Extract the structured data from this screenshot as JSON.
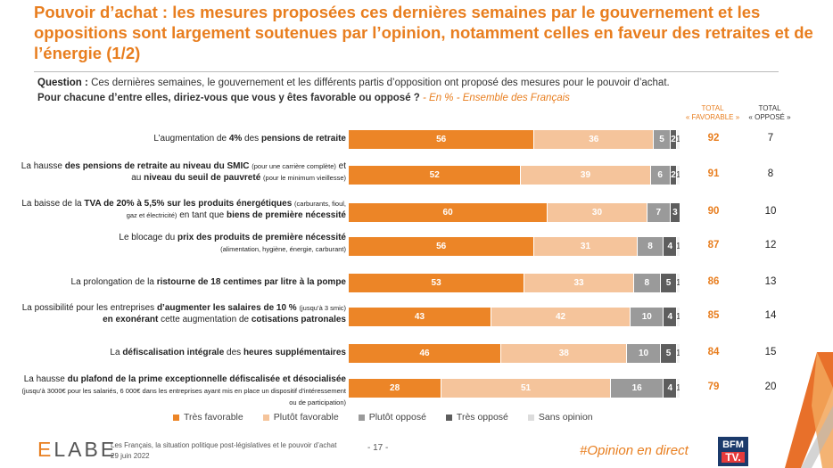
{
  "title": "Pouvoir d’achat : les mesures proposées ces dernières semaines par le gouvernement et les oppositions sont largement soutenues par l’opinion, notamment celles en faveur des retraites et de l’énergie (1/2)",
  "question": {
    "label": "Question :",
    "line1": "Ces dernières semaines, le gouvernement et les différents partis d’opposition ont proposé des mesures pour le pouvoir d’achat.",
    "line2": "Pour chacune d’entre elles, diriez-vous que vous y êtes favorable ou opposé ?",
    "note": " - En % - Ensemble des Français"
  },
  "columns": {
    "favorable_line1": "TOTAL",
    "favorable_line2": "« FAVORABLE »",
    "oppose_line1": "TOTAL",
    "oppose_line2": "« OPPOSÉ »"
  },
  "chart_data": {
    "type": "bar",
    "orientation": "horizontal",
    "stacked": true,
    "series": [
      {
        "name": "Très favorable",
        "color": "#ec8527"
      },
      {
        "name": "Plutôt favorable",
        "color": "#f5c49b"
      },
      {
        "name": "Plutôt opposé",
        "color": "#9a9a9a"
      },
      {
        "name": "Très opposé",
        "color": "#5d5d5d"
      },
      {
        "name": "Sans opinion",
        "color": "#f3f3f3"
      }
    ],
    "rows": [
      {
        "label_html": "L’augmentation de <b>4%</b> des <b>pensions de retraite</b>",
        "values": [
          56,
          36,
          5,
          2,
          1
        ],
        "total_favorable": "92",
        "total_oppose": "7"
      },
      {
        "label_html": "La hausse <b>des pensions de retraite au niveau du SMIC</b> <span class=\"sm\">(pour une carrière complète)</span> et au <b>niveau du seuil de pauvreté</b> <span class=\"sm\">(pour le minimum vieillesse)</span>",
        "values": [
          52,
          39,
          6,
          2,
          1
        ],
        "total_favorable": "91",
        "total_oppose": "8"
      },
      {
        "label_html": "La baisse de la <b>TVA de 20% à 5,5% sur les produits énergétiques</b> <span class=\"sm\">(carburants, fioul, gaz et électricité)</span> en tant que <b>biens de première nécessité</b>",
        "values": [
          60,
          30,
          7,
          3,
          0
        ],
        "total_favorable": "90",
        "total_oppose": "10"
      },
      {
        "label_html": "Le blocage du <b>prix des produits de première nécessité</b><br><span class=\"sm\">(alimentation, hygiène, énergie, carburant)</span>",
        "values": [
          56,
          31,
          8,
          4,
          1
        ],
        "total_favorable": "87",
        "total_oppose": "12"
      },
      {
        "label_html": "La prolongation de la <b>ristourne de 18 centimes par litre à la pompe</b>",
        "values": [
          53,
          33,
          8,
          5,
          1
        ],
        "total_favorable": "86",
        "total_oppose": "13"
      },
      {
        "label_html": "La possibilité pour les entreprises <b>d’augmenter les salaires de 10 %</b> <span class=\"sm\">(jusqu’à 3 smic)</span> <b>en exonérant</b> cette augmentation de <b>cotisations patronales</b>",
        "values": [
          43,
          42,
          10,
          4,
          1
        ],
        "total_favorable": "85",
        "total_oppose": "14"
      },
      {
        "label_html": "La <b>défiscalisation intégrale</b> des <b>heures supplémentaires</b>",
        "values": [
          46,
          38,
          10,
          5,
          1
        ],
        "total_favorable": "84",
        "total_oppose": "15"
      },
      {
        "label_html": "La hausse <b>du plafond de la prime exceptionnelle défiscalisée et désocialisée</b> <span class=\"sm\">(jusqu’à 3000€ pour les salariés, 6 000€ dans les entreprises ayant mis en place un dispositif d’intéressement ou de participation)</span>",
        "values": [
          28,
          51,
          16,
          4,
          1
        ],
        "total_favorable": "79",
        "total_oppose": "20"
      }
    ]
  },
  "footer": {
    "logo_prefix": "E",
    "logo_rest": "LABE",
    "source_line1": "Les Français, la situation politique post-législatives et le pouvoir d’achat",
    "source_line2": "29 juin 2022",
    "page": "- 17 -",
    "hashtag": "#Opinion en direct",
    "channel_line1": "BFM",
    "channel_line2": "TV."
  }
}
